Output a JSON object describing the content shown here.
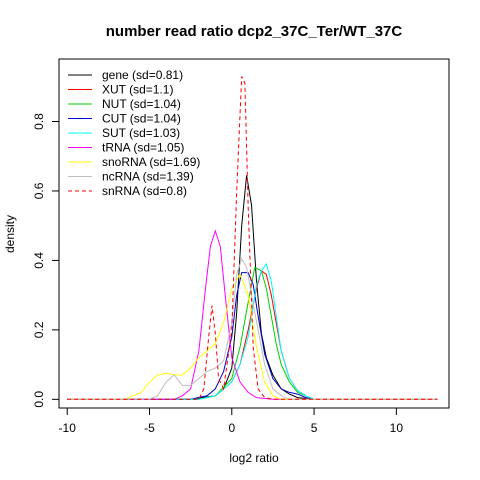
{
  "chart_data": {
    "type": "line",
    "title": "number read ratio dcp2_37C_Ter/WT_37C",
    "xlabel": "log2 ratio",
    "ylabel": "density",
    "xlim": [
      -10.5,
      13.2
    ],
    "ylim": [
      -0.025,
      0.98
    ],
    "xticks": [
      -10,
      -5,
      0,
      5,
      10
    ],
    "xtick_labels": [
      "-10",
      "-5",
      "0",
      "5",
      "10"
    ],
    "yticks": [
      0.0,
      0.2,
      0.4,
      0.6,
      0.8
    ],
    "ytick_labels": [
      "0.0",
      "0.2",
      "0.4",
      "0.6",
      "0.8"
    ],
    "grid": false,
    "legend_position": "top-left",
    "series": [
      {
        "name": "gene (sd=0.81)",
        "color": "#000000",
        "dash": false,
        "x": [
          -10,
          -2.5,
          -1,
          -0.5,
          0,
          0.3,
          0.6,
          0.9,
          1.2,
          1.5,
          1.8,
          2.1,
          2.5,
          3,
          3.5,
          4,
          5,
          12.5
        ],
        "y": [
          0,
          0,
          0.01,
          0.03,
          0.09,
          0.25,
          0.5,
          0.645,
          0.56,
          0.34,
          0.19,
          0.12,
          0.07,
          0.03,
          0.015,
          0.005,
          0,
          0
        ]
      },
      {
        "name": "XUT (sd=1.1)",
        "color": "#ff0000",
        "dash": false,
        "x": [
          -10,
          -2,
          -1,
          -0.5,
          0,
          0.5,
          1,
          1.5,
          1.8,
          2.1,
          2.4,
          2.7,
          3,
          3.5,
          4,
          4.5,
          5,
          12.5
        ],
        "y": [
          0,
          0,
          0.01,
          0.03,
          0.05,
          0.1,
          0.2,
          0.32,
          0.37,
          0.36,
          0.3,
          0.22,
          0.14,
          0.06,
          0.025,
          0.01,
          0,
          0
        ]
      },
      {
        "name": "NUT (sd=1.04)",
        "color": "#00cc00",
        "dash": false,
        "x": [
          -10,
          -2,
          -1,
          0,
          0.5,
          1,
          1.4,
          1.8,
          2.1,
          2.4,
          2.7,
          3,
          3.5,
          4,
          4.5,
          5,
          12.5
        ],
        "y": [
          0,
          0,
          0.01,
          0.06,
          0.15,
          0.28,
          0.38,
          0.37,
          0.32,
          0.24,
          0.16,
          0.1,
          0.05,
          0.02,
          0.01,
          0,
          0
        ]
      },
      {
        "name": "CUT (sd=1.04)",
        "color": "#0000cc",
        "dash": false,
        "x": [
          -10,
          -2.5,
          -1.5,
          -1,
          -0.5,
          0,
          0.3,
          0.6,
          1,
          1.3,
          1.6,
          2,
          2.5,
          3,
          3.5,
          4,
          4.5,
          5,
          12.5
        ],
        "y": [
          0,
          0,
          0.01,
          0.03,
          0.08,
          0.18,
          0.3,
          0.365,
          0.365,
          0.33,
          0.24,
          0.13,
          0.06,
          0.03,
          0.02,
          0.015,
          0.005,
          0,
          0
        ]
      },
      {
        "name": "SUT (sd=1.03)",
        "color": "#00ffff",
        "dash": false,
        "x": [
          -10,
          -2,
          -1,
          0,
          0.5,
          1,
          1.5,
          1.8,
          2.1,
          2.4,
          2.7,
          3,
          3.5,
          4,
          4.5,
          5,
          12.5
        ],
        "y": [
          0,
          0,
          0.01,
          0.05,
          0.1,
          0.18,
          0.33,
          0.37,
          0.39,
          0.34,
          0.24,
          0.14,
          0.06,
          0.025,
          0.01,
          0,
          0
        ]
      },
      {
        "name": "tRNA (sd=1.05)",
        "color": "#ff00ff",
        "dash": false,
        "x": [
          -10,
          -3.5,
          -3,
          -2.5,
          -2,
          -1.6,
          -1.3,
          -1.0,
          -0.7,
          -0.4,
          0,
          0.5,
          1,
          1.5,
          2.5,
          12.5
        ],
        "y": [
          0,
          0,
          0.01,
          0.03,
          0.14,
          0.32,
          0.44,
          0.485,
          0.44,
          0.3,
          0.12,
          0.05,
          0.02,
          0.005,
          0,
          0
        ]
      },
      {
        "name": "snoRNA (sd=1.69)",
        "color": "#ffff00",
        "dash": false,
        "x": [
          -10,
          -6.5,
          -5.5,
          -5,
          -4.5,
          -4,
          -3.5,
          -3,
          -2.5,
          -2,
          -1.5,
          -1,
          -0.5,
          0,
          0.5,
          1,
          1.5,
          2,
          2.5,
          3,
          12.5
        ],
        "y": [
          0,
          0,
          0.02,
          0.05,
          0.07,
          0.075,
          0.07,
          0.07,
          0.09,
          0.12,
          0.14,
          0.16,
          0.22,
          0.32,
          0.36,
          0.3,
          0.15,
          0.05,
          0.01,
          0,
          0
        ]
      },
      {
        "name": "ncRNA (sd=1.39)",
        "color": "#bebebe",
        "dash": false,
        "x": [
          -10,
          -5,
          -4.5,
          -4,
          -3.5,
          -3,
          -2.5,
          -2,
          -1.5,
          -1,
          -0.5,
          0,
          0.3,
          0.6,
          0.9,
          1.2,
          1.6,
          2,
          2.5,
          3,
          3.5,
          12.5
        ],
        "y": [
          0,
          0,
          0.01,
          0.05,
          0.07,
          0.04,
          0.04,
          0.06,
          0.08,
          0.09,
          0.11,
          0.22,
          0.36,
          0.405,
          0.38,
          0.3,
          0.2,
          0.1,
          0.03,
          0.01,
          0,
          0
        ]
      },
      {
        "name": "snRNA (sd=0.8)",
        "color": "#ff0000",
        "dash": true,
        "x": [
          -10,
          -2,
          -1.7,
          -1.4,
          -1.2,
          -1.0,
          -0.8,
          -0.5,
          0,
          0.3,
          0.6,
          0.8,
          1.0,
          1.3,
          1.6,
          2.0,
          2.5,
          12.5
        ],
        "y": [
          0,
          0,
          0.03,
          0.18,
          0.27,
          0.19,
          0.06,
          0.03,
          0.2,
          0.6,
          0.93,
          0.91,
          0.55,
          0.15,
          0.03,
          0.005,
          0,
          0
        ]
      }
    ]
  }
}
